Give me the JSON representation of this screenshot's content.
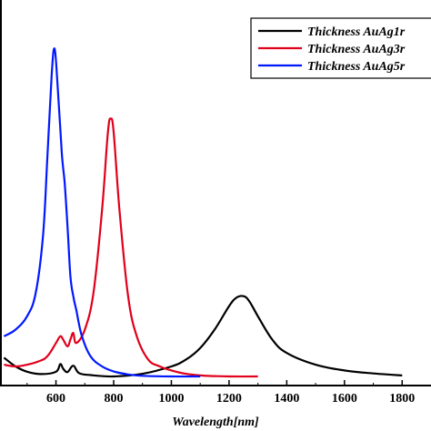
{
  "chart_data": {
    "type": "line",
    "xlabel": "Wavelength[nm]",
    "ylabel": "",
    "xlim": [
      406,
      1900
    ],
    "ylim": [
      0,
      1.0
    ],
    "xticks": [
      600,
      800,
      1000,
      1200,
      1400,
      1600,
      1800
    ],
    "xtick_labels": [
      "600",
      "800",
      "1000",
      "1200",
      "1400",
      "1600",
      "1800"
    ],
    "grid": false,
    "legend": {
      "position": "top-right",
      "entries": [
        "Thickness AuAg1r",
        "Thickness AuAg3r",
        "Thickness AuAg5r"
      ]
    },
    "series": [
      {
        "name": "Thickness AuAg1r",
        "color": "#000000",
        "x": [
          420,
          460,
          500,
          550,
          600,
          615,
          625,
          640,
          660,
          680,
          720,
          800,
          900,
          1000,
          1050,
          1100,
          1150,
          1200,
          1225,
          1250,
          1270,
          1300,
          1350,
          1400,
          1500,
          1600,
          1700,
          1800
        ],
        "y": [
          0.056,
          0.03,
          0.014,
          0.007,
          0.014,
          0.037,
          0.023,
          0.013,
          0.032,
          0.01,
          0.004,
          0.0,
          0.008,
          0.03,
          0.05,
          0.085,
          0.14,
          0.21,
          0.235,
          0.24,
          0.225,
          0.18,
          0.11,
          0.07,
          0.035,
          0.018,
          0.009,
          0.003
        ]
      },
      {
        "name": "Thickness AuAg3r",
        "color": "#e0001b",
        "x": [
          420,
          460,
          500,
          540,
          570,
          600,
          615,
          625,
          640,
          650,
          660,
          670,
          700,
          730,
          760,
          780,
          790,
          800,
          820,
          850,
          880,
          920,
          960,
          1000,
          1050,
          1100,
          1150,
          1200,
          1300
        ],
        "y": [
          0.035,
          0.03,
          0.035,
          0.045,
          0.06,
          0.1,
          0.12,
          0.11,
          0.09,
          0.11,
          0.13,
          0.1,
          0.14,
          0.25,
          0.5,
          0.73,
          0.77,
          0.73,
          0.5,
          0.24,
          0.12,
          0.05,
          0.03,
          0.018,
          0.008,
          0.003,
          0.001,
          0.0,
          0.0
        ]
      },
      {
        "name": "Thickness AuAg5r",
        "color": "#0018ff",
        "x": [
          420,
          460,
          500,
          530,
          555,
          570,
          585,
          595,
          605,
          620,
          630,
          640,
          650,
          660,
          670,
          690,
          720,
          760,
          800,
          850,
          900,
          1000,
          1100
        ],
        "y": [
          0.12,
          0.14,
          0.18,
          0.25,
          0.42,
          0.65,
          0.9,
          0.98,
          0.88,
          0.67,
          0.58,
          0.45,
          0.3,
          0.24,
          0.2,
          0.12,
          0.06,
          0.03,
          0.015,
          0.006,
          0.002,
          0.0,
          0.0
        ]
      }
    ]
  }
}
